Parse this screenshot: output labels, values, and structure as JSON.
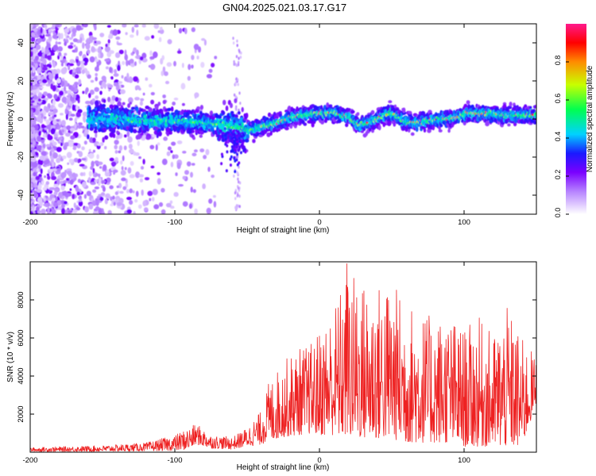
{
  "figure_title": "GN04.2025.021.03.17.G17",
  "chart_data": [
    {
      "type": "heatmap",
      "name": "spectrogram",
      "xlabel": "Height of straight line (km)",
      "ylabel": "Frequency (Hz)",
      "xlim": [
        -200,
        150
      ],
      "ylim": [
        -50,
        50
      ],
      "x_ticks": [
        -200,
        -100,
        0,
        100
      ],
      "x_tick_labels": [
        "-200",
        "-100",
        "0",
        "100"
      ],
      "y_ticks": [
        -40,
        -20,
        0,
        20,
        40
      ],
      "y_tick_labels": [
        "-40",
        "-20",
        "0",
        "20",
        "40"
      ],
      "ridge": {
        "x": [
          -155,
          -140,
          -120,
          -100,
          -80,
          -65,
          -55,
          -48,
          -40,
          -30,
          -20,
          -10,
          0,
          10,
          20,
          27,
          35,
          45,
          50,
          58,
          65,
          75,
          85,
          95,
          105,
          115,
          125,
          135,
          150
        ],
        "freq": [
          0,
          0,
          -1,
          -1,
          -2,
          -3,
          -5,
          -6,
          -4,
          -2,
          1,
          2,
          3,
          3,
          1,
          -3,
          -2,
          2,
          3,
          -1,
          -2,
          -1,
          0,
          1,
          3,
          3,
          2,
          2,
          2
        ]
      },
      "colorbar": {
        "label": "Normalized spectral amplitude",
        "range": [
          0,
          1
        ],
        "ticks": [
          0.0,
          0.2,
          0.4,
          0.6,
          0.8
        ],
        "tick_labels": [
          "0.0",
          "0.2",
          "0.4",
          "0.6",
          "0.8"
        ],
        "colors": [
          "#ffffff",
          "#c9a8ff",
          "#8a2be2",
          "#2a00ff",
          "#00e5ff",
          "#00ff3c",
          "#d6ff00",
          "#ff8c00",
          "#ff0000",
          "#ff1493"
        ]
      }
    },
    {
      "type": "line",
      "name": "snr",
      "series_name": "SNR",
      "color": "#ee2222",
      "xlabel": "Height of straight line (km)",
      "ylabel": "SNR (10 * v/v)",
      "xlim": [
        -200,
        150
      ],
      "ylim": [
        0,
        10000
      ],
      "x_ticks": [
        -200,
        -100,
        0,
        100
      ],
      "x_tick_labels": [
        "-200",
        "-100",
        "0",
        "100"
      ],
      "y_ticks": [
        2000,
        4000,
        6000,
        8000
      ],
      "y_tick_labels": [
        "2000",
        "4000",
        "6000",
        "8000"
      ],
      "envelope": {
        "x": [
          -200,
          -150,
          -120,
          -100,
          -90,
          -85,
          -75,
          -60,
          -50,
          -40,
          -35,
          -25,
          -15,
          -5,
          0,
          10,
          20,
          35,
          50,
          60,
          75,
          90,
          100,
          110,
          120,
          130,
          140,
          150
        ],
        "upper": [
          250,
          350,
          500,
          900,
          1300,
          1500,
          900,
          800,
          1300,
          2200,
          3700,
          4800,
          5500,
          5800,
          6500,
          7800,
          9600,
          8800,
          9000,
          8000,
          7200,
          7200,
          6500,
          7100,
          6200,
          7600,
          6000,
          5000
        ],
        "lower": [
          30,
          40,
          60,
          80,
          150,
          400,
          200,
          150,
          300,
          400,
          600,
          800,
          900,
          1000,
          900,
          900,
          800,
          700,
          700,
          500,
          500,
          500,
          300,
          300,
          300,
          300,
          300,
          2500
        ]
      },
      "peak": {
        "x": 19,
        "y": 9900
      }
    }
  ]
}
